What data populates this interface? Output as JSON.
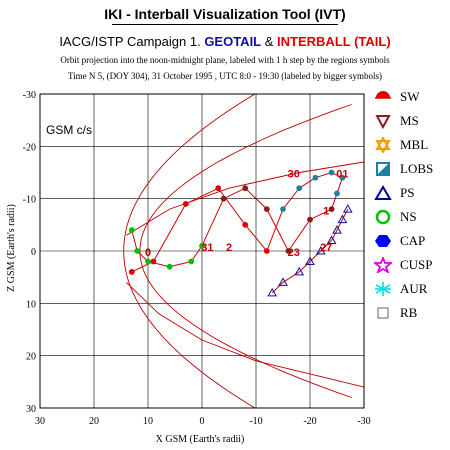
{
  "app": {
    "title": "IKI - Interball Visualization Tool (IVT)"
  },
  "campaign": {
    "prefix": "IACG/ISTP Campaign 1.",
    "spacecraft_1": "GEOTAIL",
    "joiner": "&",
    "spacecraft_2": "INTERBALL (TAIL)",
    "orbit_note": "Orbit projection into the noon-midnight plane, labeled with 1 h step by the regions symbols",
    "time_note": "Time N 5, (DOY 304), 31 October  1995 ,  UTC 8:0 - 19:30 (labeled by bigger symbols)"
  },
  "colors": {
    "geotail": "#1010a0",
    "interball": "#e00000",
    "model_boundary": "#c00000",
    "orbit_line": "#cc0000"
  },
  "legend": [
    {
      "label": "SW",
      "icon": "half-sun-icon",
      "color": "#e00000"
    },
    {
      "label": "MS",
      "icon": "down-triangle-icon",
      "color": "#8b1a1a"
    },
    {
      "label": "MBL",
      "icon": "star-of-david-icon",
      "color": "#f0a000"
    },
    {
      "label": "LOBS",
      "icon": "half-square-icon",
      "color": "#2080a0"
    },
    {
      "label": "PS",
      "icon": "up-triangle-icon",
      "color": "#000090"
    },
    {
      "label": "NS",
      "icon": "ring-icon",
      "color": "#00c000"
    },
    {
      "label": "CAP",
      "icon": "hexagon-icon",
      "color": "#0000ff"
    },
    {
      "label": "CUSP",
      "icon": "star-icon",
      "color": "#e000e0"
    },
    {
      "label": "AUR",
      "icon": "asterisk-icon",
      "color": "#00e0e0"
    },
    {
      "label": "RB",
      "icon": "square-icon",
      "color": "#808080"
    }
  ],
  "chart_data": {
    "type": "scatter",
    "frame_label": "GSM c/s",
    "xlabel": "X GSM (Earth's radii)",
    "ylabel": "Z GSM (Earth's radii)",
    "xlim": [
      30,
      -30
    ],
    "ylim": [
      30,
      -30
    ],
    "grid": true,
    "x_ticks": [
      30,
      20,
      10,
      0,
      -10,
      -20,
      -30
    ],
    "y_ticks": [
      -30,
      -20,
      -10,
      0,
      10,
      20,
      30
    ],
    "series": [
      {
        "name": "GEOTAIL",
        "x": [
          -13,
          -15,
          -18,
          -20,
          -22,
          -24,
          -25,
          -26,
          -27
        ],
        "y": [
          8,
          6,
          4,
          2,
          0,
          -2,
          -4,
          -6,
          -8
        ]
      },
      {
        "name": "INTERBALL (TAIL)",
        "x": [
          13,
          9,
          3,
          -3,
          -8,
          -12,
          -15,
          -18,
          -21,
          -24,
          -26,
          -25,
          -24,
          -20,
          -16,
          -12,
          -8,
          -4,
          0,
          2,
          6,
          10,
          12,
          13
        ],
        "y": [
          4,
          2,
          -9,
          -12,
          -5,
          0,
          -8,
          -12,
          -14,
          -15,
          -14,
          -11,
          -8,
          -6,
          0,
          -8,
          -12,
          -10,
          -1,
          2,
          3,
          2,
          0,
          -4
        ]
      }
    ],
    "hour_labels": [
      {
        "text": "0",
        "x": 10,
        "y": 1
      },
      {
        "text": "30",
        "x": -17,
        "y": -14
      },
      {
        "text": "01",
        "x": -26,
        "y": -14
      },
      {
        "text": "1",
        "x": -23,
        "y": -7
      },
      {
        "text": "23",
        "x": -17,
        "y": 1
      },
      {
        "text": "2",
        "x": -5,
        "y": 0
      },
      {
        "text": "31",
        "x": -1,
        "y": 0
      },
      {
        "text": "27",
        "x": -23,
        "y": 0
      }
    ]
  }
}
